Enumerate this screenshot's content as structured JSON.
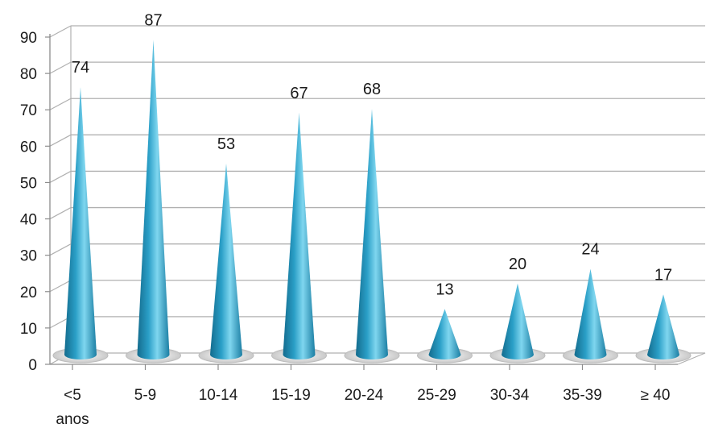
{
  "chart_data": {
    "type": "bar",
    "bar_shape": "cone",
    "categories": [
      "<5 anos",
      "5-9",
      "10-14",
      "15-19",
      "20-24",
      "25-29",
      "30-34",
      "35-39",
      "≥ 40"
    ],
    "category_lines": [
      [
        "<5",
        "anos"
      ],
      [
        "5-9"
      ],
      [
        "10-14"
      ],
      [
        "15-19"
      ],
      [
        "20-24"
      ],
      [
        "25-29"
      ],
      [
        "30-34"
      ],
      [
        "35-39"
      ],
      [
        "≥ 40"
      ]
    ],
    "values": [
      74,
      87,
      53,
      67,
      68,
      13,
      20,
      24,
      17
    ],
    "data_labels": [
      "74",
      "87",
      "53",
      "67",
      "68",
      "13",
      "20",
      "24",
      "17"
    ],
    "ylim": [
      0,
      90
    ],
    "yticks": [
      "0",
      "10",
      "20",
      "30",
      "40",
      "50",
      "60",
      "70",
      "80",
      "90"
    ],
    "title": "",
    "xlabel": "",
    "ylabel": "",
    "grid": true,
    "legend": "none",
    "colors": {
      "bar": "#2a9fc7",
      "bar_light": "#7fd6ef",
      "bar_dark": "#146c8e",
      "grid": "#b0b0b0",
      "axis": "#8c8c8c"
    }
  }
}
